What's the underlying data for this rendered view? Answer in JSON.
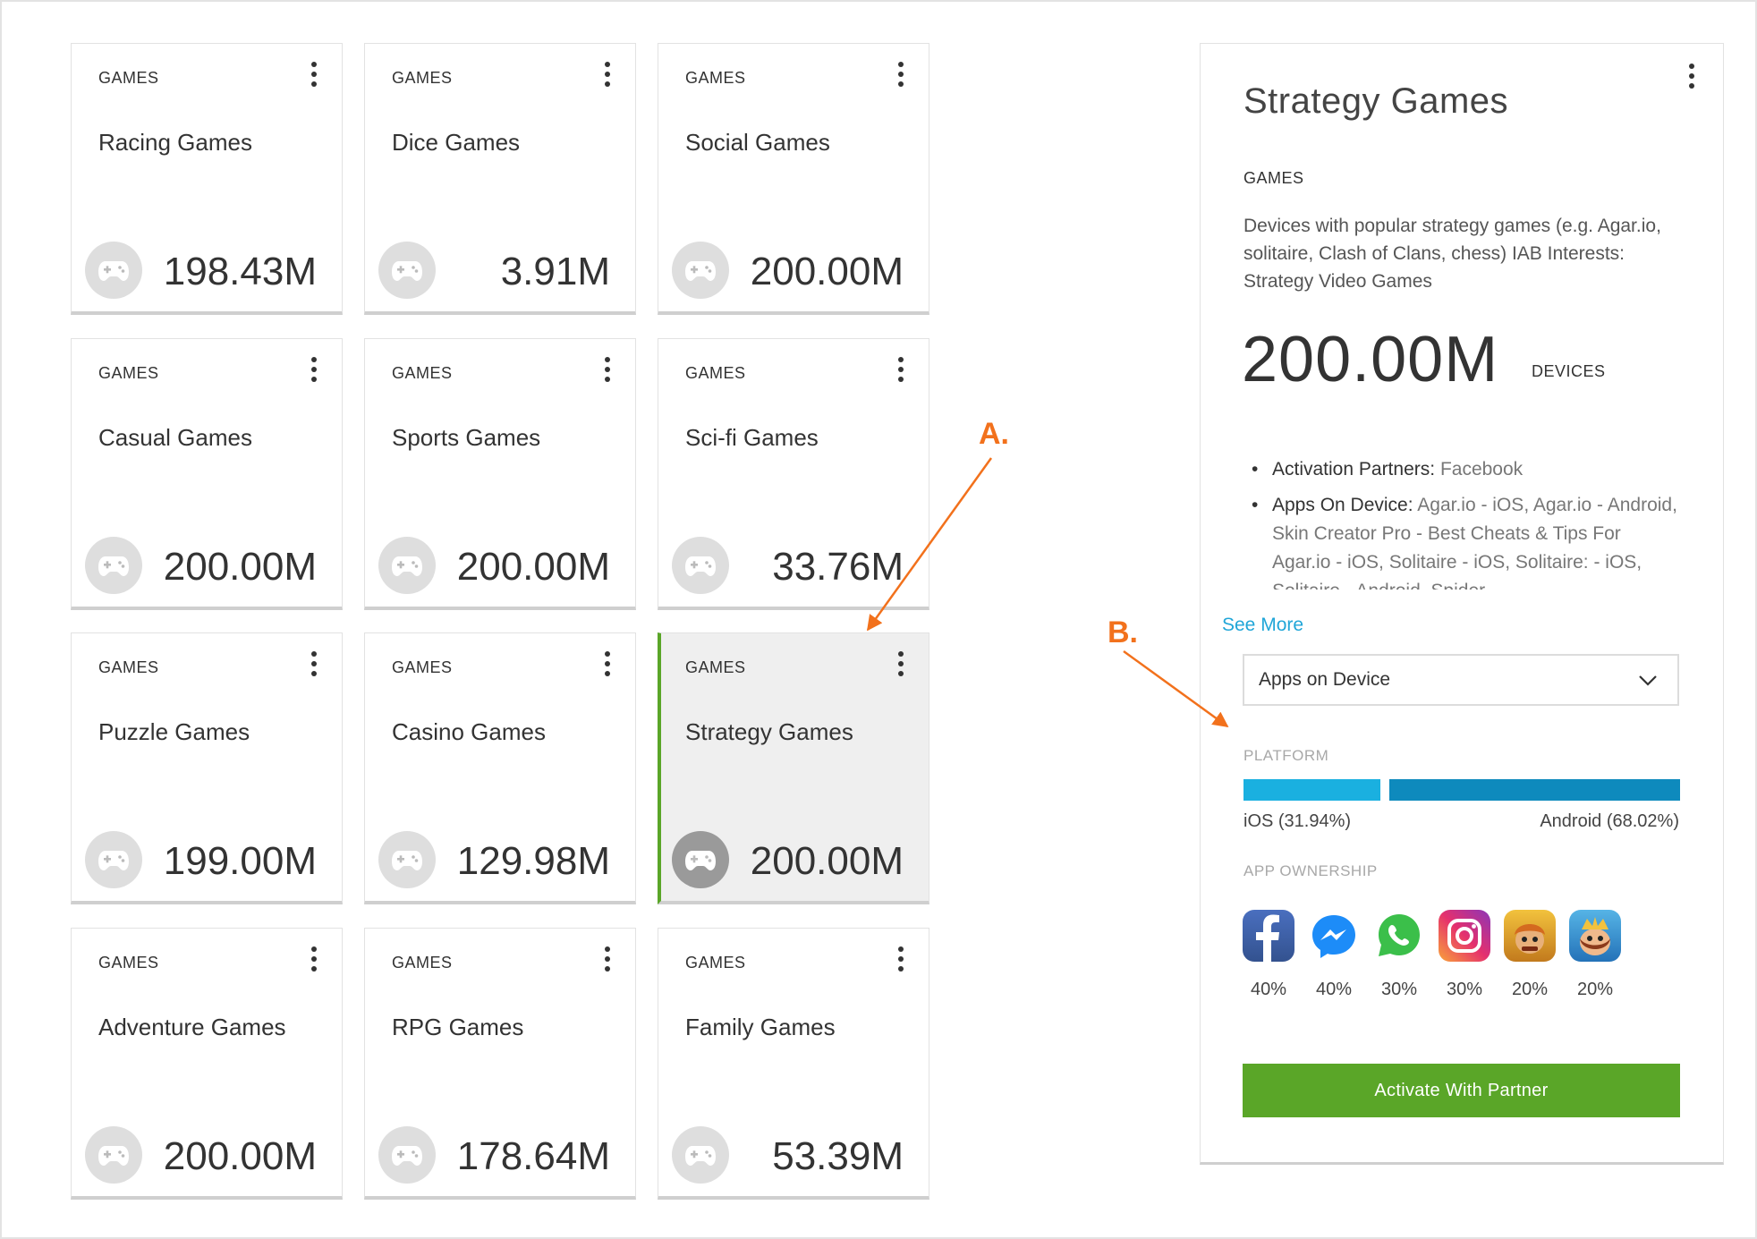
{
  "cards": [
    {
      "category": "GAMES",
      "name": "Racing Games",
      "value": "198.43M",
      "selected": false
    },
    {
      "category": "GAMES",
      "name": "Dice Games",
      "value": "3.91M",
      "selected": false
    },
    {
      "category": "GAMES",
      "name": "Social Games",
      "value": "200.00M",
      "selected": false
    },
    {
      "category": "GAMES",
      "name": "Casual Games",
      "value": "200.00M",
      "selected": false
    },
    {
      "category": "GAMES",
      "name": "Sports Games",
      "value": "200.00M",
      "selected": false
    },
    {
      "category": "GAMES",
      "name": "Sci-fi Games",
      "value": "33.76M",
      "selected": false
    },
    {
      "category": "GAMES",
      "name": "Puzzle Games",
      "value": "199.00M",
      "selected": false
    },
    {
      "category": "GAMES",
      "name": "Casino Games",
      "value": "129.98M",
      "selected": false
    },
    {
      "category": "GAMES",
      "name": "Strategy Games",
      "value": "200.00M",
      "selected": true
    },
    {
      "category": "GAMES",
      "name": "Adventure Games",
      "value": "200.00M",
      "selected": false
    },
    {
      "category": "GAMES",
      "name": "RPG Games",
      "value": "178.64M",
      "selected": false
    },
    {
      "category": "GAMES",
      "name": "Family Games",
      "value": "53.39M",
      "selected": false
    }
  ],
  "detail": {
    "title": "Strategy Games",
    "category": "GAMES",
    "description": "Devices with popular strategy games (e.g. Agar.io, solitaire, Clash of Clans, chess) IAB Interests: Strategy Video Games",
    "count": "200.00M",
    "count_unit": "DEVICES",
    "partners_label": "Activation Partners:",
    "partners_value": "Facebook",
    "apps_label": "Apps On Device:",
    "apps_value": "Agar.io - iOS, Agar.io - Android, Skin Creator Pro - Best Cheats & Tips For Agar.io - iOS, Solitaire - iOS, Solitaire: - iOS, Solitaire - Android, Spider",
    "see_more": "See More",
    "dropdown_selected": "Apps on Device",
    "platform_label": "PLATFORM",
    "platform": {
      "ios_label": "iOS (31.94%)",
      "android_label": "Android (68.02%)",
      "ios_pct": 31.94,
      "android_pct": 68.02,
      "ios_color": "#1ab0e0",
      "android_color": "#0e8abd"
    },
    "ownership_label": "APP OWNERSHIP",
    "apps": [
      {
        "icon": "facebook-icon",
        "pct": "40%"
      },
      {
        "icon": "messenger-icon",
        "pct": "40%"
      },
      {
        "icon": "whatsapp-icon",
        "pct": "30%"
      },
      {
        "icon": "instagram-icon",
        "pct": "30%"
      },
      {
        "icon": "clash-of-clans-icon",
        "pct": "20%"
      },
      {
        "icon": "clash-royale-icon",
        "pct": "20%"
      }
    ],
    "cta": "Activate With Partner",
    "accent_color": "#5aa628",
    "link_color": "#21a6d8"
  },
  "annotations": {
    "a": "A.",
    "b": "B.",
    "color": "#f2711c"
  }
}
